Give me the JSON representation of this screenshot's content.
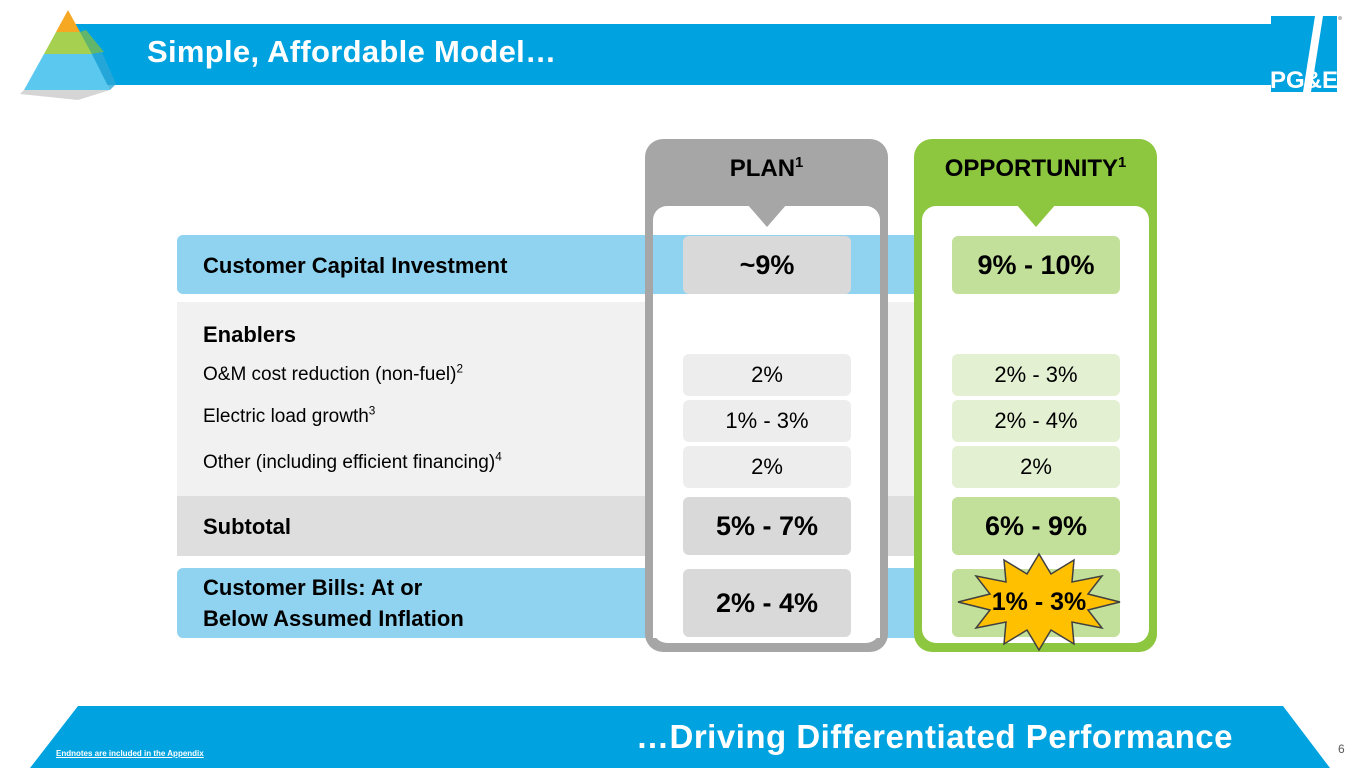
{
  "slide": {
    "title": "Simple, Affordable Model…",
    "footer_tagline": "…Driving Differentiated Performance",
    "endnote": "Endnotes are included in the Appendix",
    "page_number": "6",
    "logo_text": "PG&E"
  },
  "columns": {
    "plan": {
      "label": "PLAN",
      "footnote": "1"
    },
    "opportunity": {
      "label": "OPPORTUNITY",
      "footnote": "1"
    }
  },
  "rows": {
    "capital": {
      "label": "Customer Capital Investment",
      "plan": "~9%",
      "opportunity": "9% - 10%"
    },
    "enablers_heading": "Enablers",
    "om": {
      "label": "O&M cost reduction (non-fuel)",
      "footnote": "2",
      "plan": "2%",
      "opportunity": "2% - 3%"
    },
    "load": {
      "label": "Electric load growth",
      "footnote": "3",
      "plan": "1% - 3%",
      "opportunity": "2% - 4%"
    },
    "other": {
      "label": "Other (including efficient financing)",
      "footnote": "4",
      "plan": "2%",
      "opportunity": "2%"
    },
    "subtotal": {
      "label": "Subtotal",
      "plan": "5% - 7%",
      "opportunity": "6% - 9%"
    },
    "bills": {
      "label_line1": "Customer Bills: At or",
      "label_line2": "Below Assumed Inflation",
      "plan": "2% - 4%",
      "opportunity": "1% - 3%"
    }
  },
  "colors": {
    "header_blue": "#00a3e0",
    "light_blue_band": "#8fd3f0",
    "plan_gray": "#a6a6a6",
    "opportunity_green": "#8dc63f",
    "burst_yellow": "#ffc000"
  },
  "icons": {
    "pyramid": "pyramid-icon",
    "logo": "pge-logo",
    "burst": "starburst-icon"
  }
}
